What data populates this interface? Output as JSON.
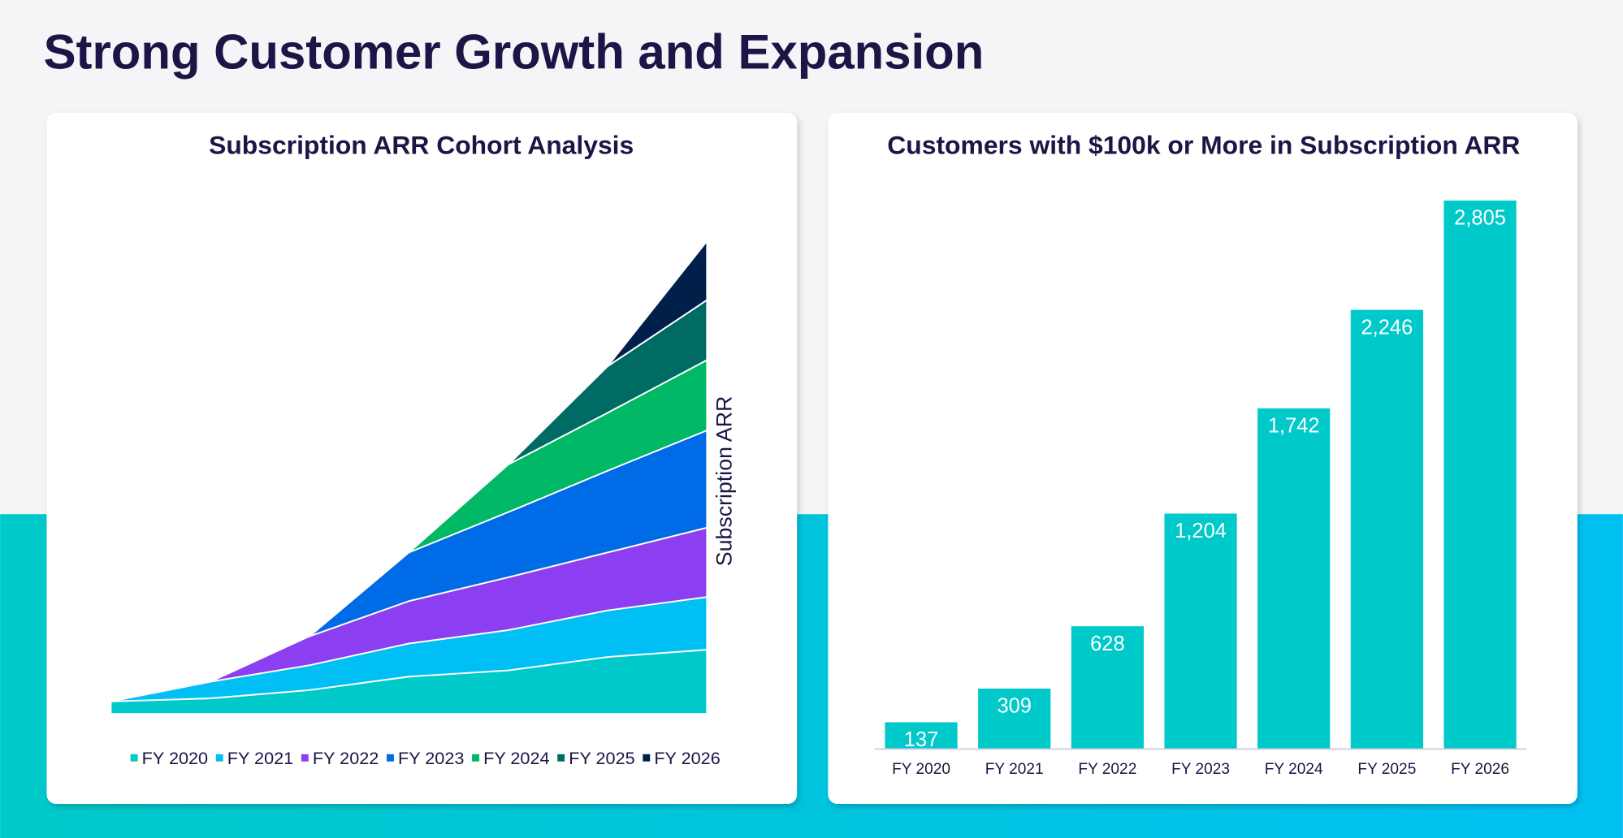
{
  "title": "Strong Customer Growth and Expansion",
  "chart_data": [
    {
      "type": "stacked_area",
      "title": "Subscription ARR Cohort Analysis",
      "ylabel": "Subscription ARR",
      "ylim": [
        0,
        460
      ],
      "legend": "bottom",
      "series": [
        {
          "name": "FY 2020",
          "color": "#00c9c9",
          "values": [
            12,
            15,
            23,
            36,
            42,
            55,
            62
          ]
        },
        {
          "name": "FY 2021",
          "color": "#00bff5",
          "values": [
            0,
            16,
            24,
            32,
            39,
            45,
            51
          ]
        },
        {
          "name": "FY 2022",
          "color": "#8b3ff0",
          "values": [
            null,
            0,
            28,
            41,
            51,
            56,
            67
          ]
        },
        {
          "name": "FY 2023",
          "color": "#006be6",
          "values": [
            null,
            null,
            0,
            47,
            63,
            79,
            94
          ]
        },
        {
          "name": "FY 2024",
          "color": "#00b865",
          "values": [
            null,
            null,
            null,
            0,
            46,
            56,
            68
          ]
        },
        {
          "name": "FY 2025",
          "color": "#006b63",
          "values": [
            null,
            null,
            null,
            null,
            0,
            45,
            58
          ]
        },
        {
          "name": "FY 2026",
          "color": "#00204a",
          "values": [
            null,
            null,
            null,
            null,
            null,
            0,
            57
          ]
        }
      ]
    },
    {
      "type": "bar",
      "title": "Customers with $100k or More in Subscription ARR",
      "color": "#00c9c9",
      "categories": [
        "FY 2020",
        "FY 2021",
        "FY 2022",
        "FY 2023",
        "FY 2024",
        "FY 2025",
        "FY 2026"
      ],
      "values": [
        137,
        309,
        628,
        1204,
        1742,
        2246,
        2805
      ],
      "value_labels": [
        "137",
        "309",
        "628",
        "1,204",
        "1,742",
        "2,246",
        "2,805"
      ],
      "ylim": [
        0,
        3000
      ]
    }
  ]
}
